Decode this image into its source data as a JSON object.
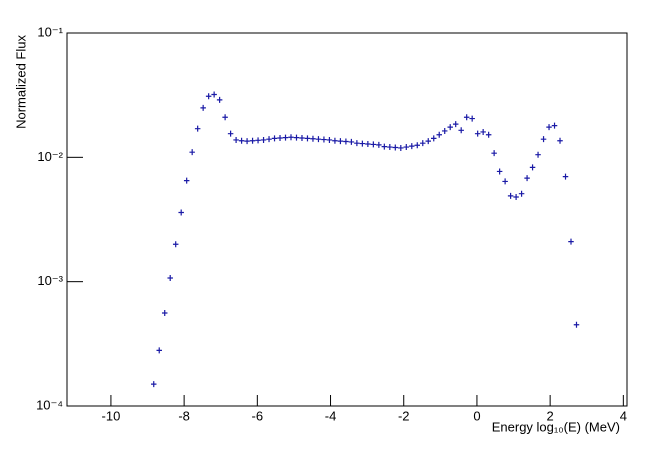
{
  "chart_data": {
    "type": "scatter",
    "y_log": true,
    "xlabel": "Energy log₁₀(E) (MeV)",
    "ylabel": "Normalized Flux",
    "xlim": [
      -11.2,
      4.1
    ],
    "ylim": [
      0.0001,
      0.1
    ],
    "xticks": [
      -10,
      -8,
      -6,
      -4,
      -2,
      0,
      2,
      4
    ],
    "yticks": [
      {
        "value": 0.0001,
        "label": "10⁻⁴"
      },
      {
        "value": 0.001,
        "label": "10⁻³"
      },
      {
        "value": 0.01,
        "label": "10⁻²"
      },
      {
        "value": 0.1,
        "label": "10⁻¹"
      }
    ],
    "bin_width": 0.15,
    "color": "#1a1aa6",
    "x": [
      -8.83,
      -8.68,
      -8.53,
      -8.38,
      -8.23,
      -8.08,
      -7.93,
      -7.78,
      -7.63,
      -7.48,
      -7.33,
      -7.18,
      -7.03,
      -6.88,
      -6.73,
      -6.58,
      -6.43,
      -6.28,
      -6.13,
      -5.98,
      -5.83,
      -5.68,
      -5.53,
      -5.38,
      -5.23,
      -5.08,
      -4.93,
      -4.78,
      -4.63,
      -4.48,
      -4.33,
      -4.18,
      -4.03,
      -3.88,
      -3.73,
      -3.58,
      -3.43,
      -3.28,
      -3.13,
      -2.98,
      -2.83,
      -2.68,
      -2.53,
      -2.38,
      -2.23,
      -2.08,
      -1.93,
      -1.78,
      -1.63,
      -1.48,
      -1.33,
      -1.18,
      -1.03,
      -0.88,
      -0.73,
      -0.58,
      -0.43,
      -0.28,
      -0.13,
      0.02,
      0.17,
      0.32,
      0.47,
      0.62,
      0.77,
      0.92,
      1.07,
      1.22,
      1.37,
      1.52,
      1.67,
      1.82,
      1.97,
      2.12,
      2.27,
      2.42,
      2.57,
      2.72
    ],
    "values": [
      0.00015,
      0.00028,
      0.00056,
      0.00107,
      0.002,
      0.0036,
      0.0065,
      0.011,
      0.017,
      0.025,
      0.031,
      0.032,
      0.029,
      0.021,
      0.0155,
      0.0138,
      0.0136,
      0.0135,
      0.0136,
      0.0137,
      0.0138,
      0.014,
      0.0142,
      0.0143,
      0.0144,
      0.0145,
      0.0144,
      0.0143,
      0.0142,
      0.0141,
      0.014,
      0.0139,
      0.0138,
      0.0136,
      0.0135,
      0.0134,
      0.0133,
      0.013,
      0.0129,
      0.0128,
      0.0127,
      0.0126,
      0.0122,
      0.0121,
      0.012,
      0.0119,
      0.0121,
      0.0123,
      0.0125,
      0.013,
      0.0135,
      0.0142,
      0.0152,
      0.0163,
      0.0175,
      0.0185,
      0.0165,
      0.021,
      0.0205,
      0.0155,
      0.016,
      0.0152,
      0.0108,
      0.0077,
      0.0064,
      0.0049,
      0.0048,
      0.0051,
      0.0068,
      0.0083,
      0.0105,
      0.014,
      0.0175,
      0.018,
      0.0136,
      0.007,
      0.0021,
      0.00045
    ]
  }
}
